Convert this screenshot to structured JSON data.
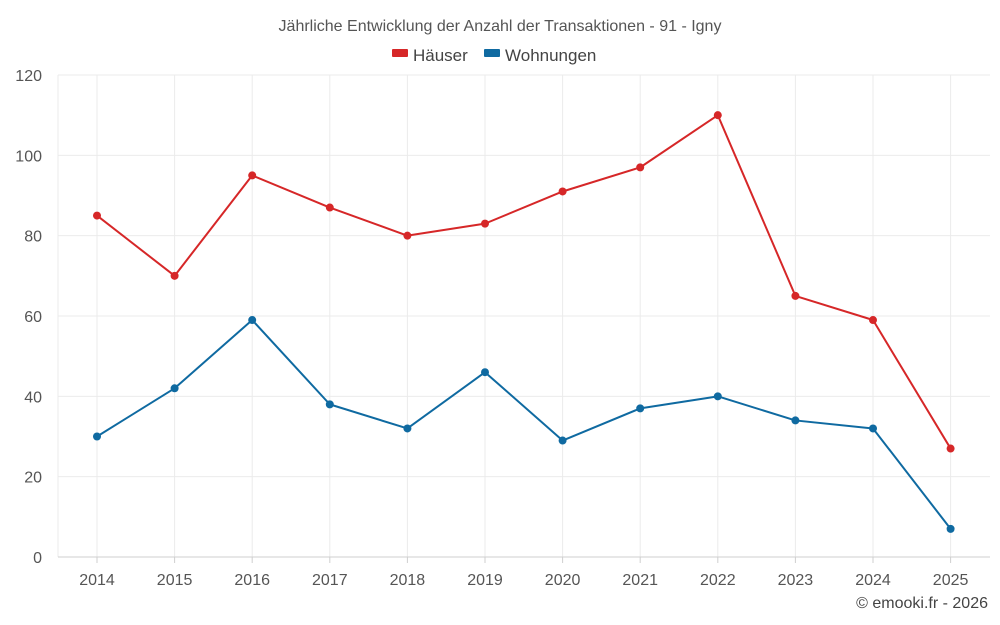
{
  "chart_data": {
    "type": "line",
    "title": "Jährliche Entwicklung der Anzahl der Transaktionen - 91 - Igny",
    "xlabel": "",
    "ylabel": "",
    "categories": [
      "2014",
      "2015",
      "2016",
      "2017",
      "2018",
      "2019",
      "2020",
      "2021",
      "2022",
      "2023",
      "2024",
      "2025"
    ],
    "ylim": [
      0,
      120
    ],
    "yticks": [
      0,
      20,
      40,
      60,
      80,
      100,
      120
    ],
    "legend_position": "top-center",
    "grid": true,
    "series": [
      {
        "name": "Häuser",
        "color": "#d62728",
        "values": [
          85,
          70,
          95,
          87,
          80,
          83,
          91,
          97,
          110,
          65,
          59,
          27
        ]
      },
      {
        "name": "Wohnungen",
        "color": "#0f6aa1",
        "values": [
          30,
          42,
          59,
          38,
          32,
          46,
          29,
          37,
          40,
          34,
          32,
          7
        ]
      }
    ]
  },
  "credit": "© emooki.fr - 2026"
}
